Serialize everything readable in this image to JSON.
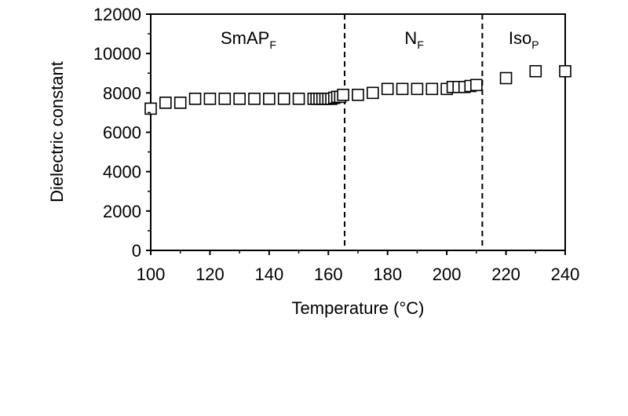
{
  "chart_data": {
    "type": "scatter",
    "xlabel": "Temperature (°C)",
    "ylabel": "Dielectric constant",
    "xlim": [
      100,
      240
    ],
    "ylim": [
      0,
      12000
    ],
    "xticks": [
      100,
      120,
      140,
      160,
      180,
      200,
      220,
      240
    ],
    "yticks": [
      0,
      2000,
      4000,
      6000,
      8000,
      10000,
      12000
    ],
    "grid": false,
    "marker": "open-square",
    "phase_boundaries": [
      165.5,
      212
    ],
    "phases": [
      {
        "main": "SmAP",
        "sub": "F",
        "x": 133
      },
      {
        "main": "N",
        "sub": "F",
        "x": 189
      },
      {
        "main": "Iso",
        "sub": "P",
        "x": 226
      }
    ],
    "series": [
      {
        "x": [
          100,
          105,
          110,
          115,
          120,
          125,
          130,
          135,
          140,
          145,
          150,
          155,
          156,
          157,
          158,
          159,
          160,
          161,
          162,
          163,
          164,
          165,
          170,
          175,
          180,
          185,
          190,
          195,
          200,
          202,
          204,
          206,
          208,
          210,
          220,
          230,
          240
        ],
        "y": [
          7200,
          7500,
          7500,
          7700,
          7700,
          7700,
          7700,
          7700,
          7700,
          7700,
          7700,
          7700,
          7700,
          7700,
          7700,
          7700,
          7700,
          7700,
          7750,
          7800,
          7800,
          7900,
          7900,
          8000,
          8200,
          8200,
          8200,
          8200,
          8200,
          8300,
          8300,
          8300,
          8350,
          8400,
          8750,
          9100,
          9100
        ]
      }
    ]
  }
}
